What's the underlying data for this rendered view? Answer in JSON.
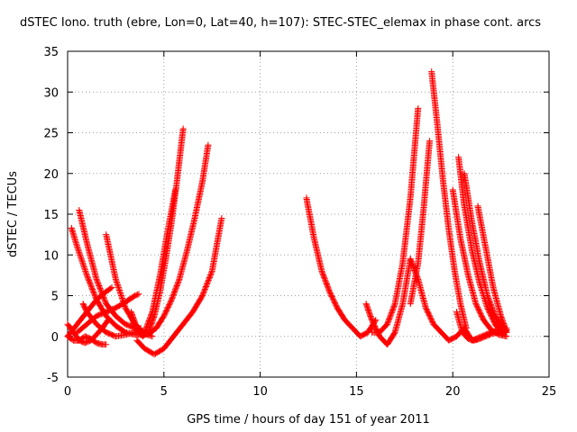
{
  "chart_data": {
    "type": "scatter",
    "title": "dSTEC Iono. truth (ebre, Lon=0, Lat=40, h=107): STEC-STEC_elemax in phase cont. arcs",
    "xlabel": "GPS time / hours of day 151 of year 2011",
    "ylabel": "dSTEC  / TECUs",
    "xlim": [
      0,
      25
    ],
    "ylim": [
      -5,
      35
    ],
    "xticks": [
      0,
      5,
      10,
      15,
      20,
      25
    ],
    "yticks": [
      -5,
      0,
      5,
      10,
      15,
      20,
      25,
      30,
      35
    ],
    "grid": true,
    "marker": "+",
    "series_color": "#ff0000",
    "series": [
      {
        "x": [
          0.0,
          0.3,
          0.6,
          0.9,
          1.2,
          1.5,
          1.8,
          2.1
        ],
        "y": [
          1.5,
          0.5,
          -0.5,
          -0.8,
          -0.5,
          0.2,
          1.0,
          2.0
        ]
      },
      {
        "x": [
          0.0,
          0.3,
          0.6,
          0.9,
          1.2,
          1.5,
          1.8,
          2.0
        ],
        "y": [
          0.0,
          -0.5,
          -0.5,
          0.0,
          -0.3,
          -0.8,
          -1.0,
          -1.0
        ]
      },
      {
        "x": [
          0.2,
          0.5,
          1.0,
          1.5,
          2.0,
          2.5,
          3.0,
          3.5,
          3.8
        ],
        "y": [
          13.3,
          11.0,
          7.5,
          4.5,
          2.5,
          1.3,
          0.5,
          0.2,
          0.2
        ]
      },
      {
        "x": [
          0.6,
          1.0,
          1.5,
          2.0,
          2.5,
          3.0,
          3.5,
          3.8
        ],
        "y": [
          15.5,
          11.5,
          7.0,
          4.0,
          2.5,
          1.5,
          1.0,
          1.0
        ]
      },
      {
        "x": [
          0.0,
          0.5,
          1.0,
          1.5,
          2.0,
          2.3
        ],
        "y": [
          0.0,
          1.5,
          3.0,
          4.5,
          5.5,
          6.0
        ]
      },
      {
        "x": [
          0.5,
          1.0,
          1.5,
          2.0,
          2.5,
          3.0,
          3.5,
          3.7
        ],
        "y": [
          0.5,
          1.5,
          2.5,
          3.0,
          3.5,
          4.2,
          5.0,
          5.2
        ]
      },
      {
        "x": [
          0.8,
          1.0,
          1.5,
          2.0,
          2.5,
          3.0,
          3.5
        ],
        "y": [
          4.0,
          3.0,
          1.5,
          0.5,
          0.0,
          0.2,
          0.5
        ]
      },
      {
        "x": [
          2.0,
          2.5,
          3.0,
          3.5,
          4.0,
          4.4
        ],
        "y": [
          12.5,
          7.0,
          3.5,
          1.5,
          0.3,
          0.0
        ]
      },
      {
        "x": [
          3.3,
          3.6,
          3.9,
          4.2,
          4.5,
          4.8,
          5.1,
          5.4,
          5.7,
          6.0
        ],
        "y": [
          3.0,
          1.0,
          0.0,
          0.5,
          2.5,
          5.5,
          9.5,
          14.0,
          19.5,
          25.5
        ]
      },
      {
        "x": [
          3.3,
          3.6,
          4.0,
          4.4,
          4.8,
          5.2,
          5.6
        ],
        "y": [
          2.5,
          0.5,
          0.5,
          3.0,
          7.5,
          13.0,
          18.0
        ]
      },
      {
        "x": [
          3.8,
          4.2,
          4.6,
          5.0,
          5.4,
          5.8,
          6.2,
          6.6,
          7.0,
          7.3
        ],
        "y": [
          0.2,
          0.3,
          1.0,
          2.5,
          4.5,
          7.0,
          10.5,
          14.5,
          19.0,
          23.5
        ]
      },
      {
        "x": [
          3.6,
          4.0,
          4.5,
          5.0,
          5.5,
          6.0,
          6.5,
          7.0,
          7.5,
          8.0
        ],
        "y": [
          -0.5,
          -1.5,
          -2.2,
          -1.5,
          0.0,
          1.5,
          3.0,
          5.0,
          8.0,
          14.5
        ]
      },
      {
        "x": [
          12.4,
          12.8,
          13.2,
          13.6,
          14.0,
          14.4,
          14.8,
          15.2,
          15.6,
          16.0
        ],
        "y": [
          17.0,
          12.0,
          8.0,
          5.5,
          3.5,
          2.0,
          1.0,
          0.0,
          0.5,
          2.0
        ]
      },
      {
        "x": [
          15.5,
          15.8,
          16.2,
          16.6,
          17.0,
          17.4,
          17.8
        ],
        "y": [
          4.0,
          2.0,
          0.0,
          -1.0,
          0.5,
          4.0,
          9.5
        ]
      },
      {
        "x": [
          15.8,
          16.2,
          16.6,
          17.0,
          17.4,
          17.8,
          18.2
        ],
        "y": [
          0.5,
          0.5,
          1.5,
          4.0,
          9.0,
          17.0,
          28.0
        ]
      },
      {
        "x": [
          17.8,
          18.2,
          18.6,
          19.0,
          19.4,
          19.8,
          20.2,
          20.6,
          21.0,
          21.5,
          22.0,
          22.5,
          22.8
        ],
        "y": [
          9.5,
          7.0,
          3.5,
          1.5,
          0.5,
          -0.5,
          0.0,
          1.0,
          -0.5,
          0.0,
          0.5,
          0.8,
          1.0
        ]
      },
      {
        "x": [
          17.8,
          18.2,
          18.5,
          18.8
        ],
        "y": [
          4.0,
          9.0,
          16.0,
          24.0
        ]
      },
      {
        "x": [
          18.9,
          19.2,
          19.5,
          19.8,
          20.1,
          20.4,
          20.7
        ],
        "y": [
          32.5,
          26.0,
          19.0,
          13.0,
          8.0,
          4.0,
          1.0
        ]
      },
      {
        "x": [
          20.0,
          20.4,
          20.8,
          21.2,
          21.6,
          22.0,
          22.4,
          22.8
        ],
        "y": [
          18.0,
          12.0,
          7.5,
          4.0,
          2.0,
          0.8,
          0.2,
          0.0
        ]
      },
      {
        "x": [
          20.3,
          20.6,
          21.0,
          21.4,
          21.8,
          22.2,
          22.6
        ],
        "y": [
          22.0,
          16.0,
          10.5,
          6.5,
          3.5,
          1.5,
          0.2
        ]
      },
      {
        "x": [
          20.6,
          21.0,
          21.4,
          21.8,
          22.2,
          22.6,
          22.8
        ],
        "y": [
          20.0,
          14.0,
          9.0,
          5.0,
          2.5,
          1.0,
          0.5
        ]
      },
      {
        "x": [
          21.3,
          21.7,
          22.1,
          22.5,
          22.8
        ],
        "y": [
          16.0,
          11.0,
          6.0,
          2.5,
          0.5
        ]
      },
      {
        "x": [
          20.2,
          20.5,
          20.8,
          21.1,
          21.4,
          21.7,
          22.0,
          22.4,
          22.8
        ],
        "y": [
          3.0,
          0.5,
          -0.3,
          -0.5,
          -0.3,
          0.0,
          0.3,
          0.5,
          0.8
        ]
      }
    ]
  }
}
